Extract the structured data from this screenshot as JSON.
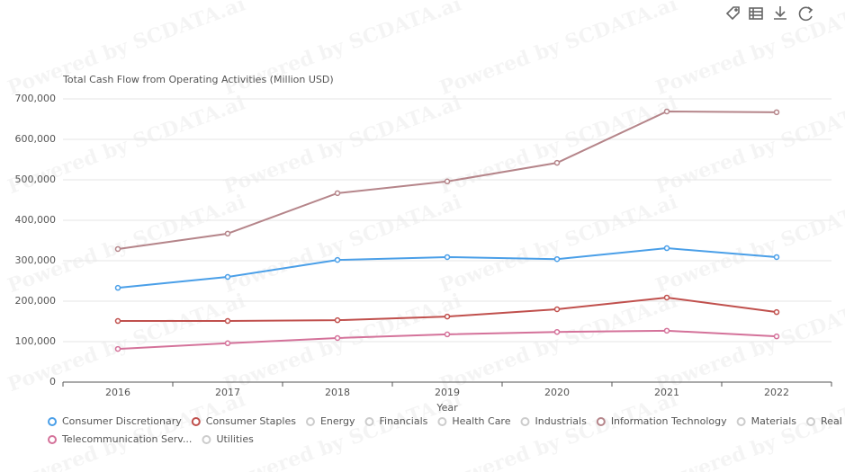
{
  "chart_data": {
    "type": "line",
    "watermark": "Powered by SCDATA.ai",
    "y_axis_title": "Total Cash Flow from Operating Activities (Million USD)",
    "x_axis_label": "Year",
    "categories": [
      "2016",
      "2017",
      "2018",
      "2019",
      "2020",
      "2021",
      "2022"
    ],
    "ylim": [
      0,
      700000
    ],
    "yticks": [
      0,
      {
        "value": 100000,
        "label": "100,000"
      },
      {
        "value": 200000,
        "label": "200,000"
      },
      {
        "value": 300000,
        "label": "300,000"
      },
      {
        "value": 400000,
        "label": "400,000"
      },
      {
        "value": 500000,
        "label": "500,000"
      },
      {
        "value": 600000,
        "label": "600,000"
      },
      {
        "value": 700000,
        "label": "700,000"
      }
    ],
    "grid": true,
    "series": [
      {
        "name": "Consumer Discretionary",
        "color": "#4a9fe8",
        "visible": true,
        "values": [
          233000,
          260000,
          302000,
          309000,
          304000,
          331000,
          309000
        ]
      },
      {
        "name": "Consumer Staples",
        "color": "#c0504d",
        "visible": true,
        "values": [
          151000,
          151000,
          153000,
          162000,
          180000,
          209000,
          173000
        ]
      },
      {
        "name": "Energy",
        "color": "#cccccc",
        "visible": false,
        "values": [
          null,
          null,
          null,
          null,
          null,
          null,
          null
        ]
      },
      {
        "name": "Financials",
        "color": "#cccccc",
        "visible": false,
        "values": [
          null,
          null,
          null,
          null,
          null,
          null,
          null
        ]
      },
      {
        "name": "Health Care",
        "color": "#cccccc",
        "visible": false,
        "values": [
          null,
          null,
          null,
          null,
          null,
          null,
          null
        ]
      },
      {
        "name": "Industrials",
        "color": "#cccccc",
        "visible": false,
        "values": [
          null,
          null,
          null,
          null,
          null,
          null,
          null
        ]
      },
      {
        "name": "Information Technology",
        "color": "#b5858a",
        "visible": true,
        "values": [
          329000,
          367000,
          467000,
          496000,
          542000,
          669000,
          667000
        ]
      },
      {
        "name": "Materials",
        "color": "#cccccc",
        "visible": false,
        "values": [
          null,
          null,
          null,
          null,
          null,
          null,
          null
        ]
      },
      {
        "name": "Real Estate",
        "color": "#cccccc",
        "visible": false,
        "values": [
          null,
          null,
          null,
          null,
          null,
          null,
          null
        ]
      },
      {
        "name": "Telecommunication Serv...",
        "color": "#d4729a",
        "visible": true,
        "values": [
          82000,
          96000,
          109000,
          118000,
          124000,
          127000,
          113000
        ]
      },
      {
        "name": "Utilities",
        "color": "#cccccc",
        "visible": false,
        "values": [
          null,
          null,
          null,
          null,
          null,
          null,
          null
        ]
      }
    ]
  }
}
